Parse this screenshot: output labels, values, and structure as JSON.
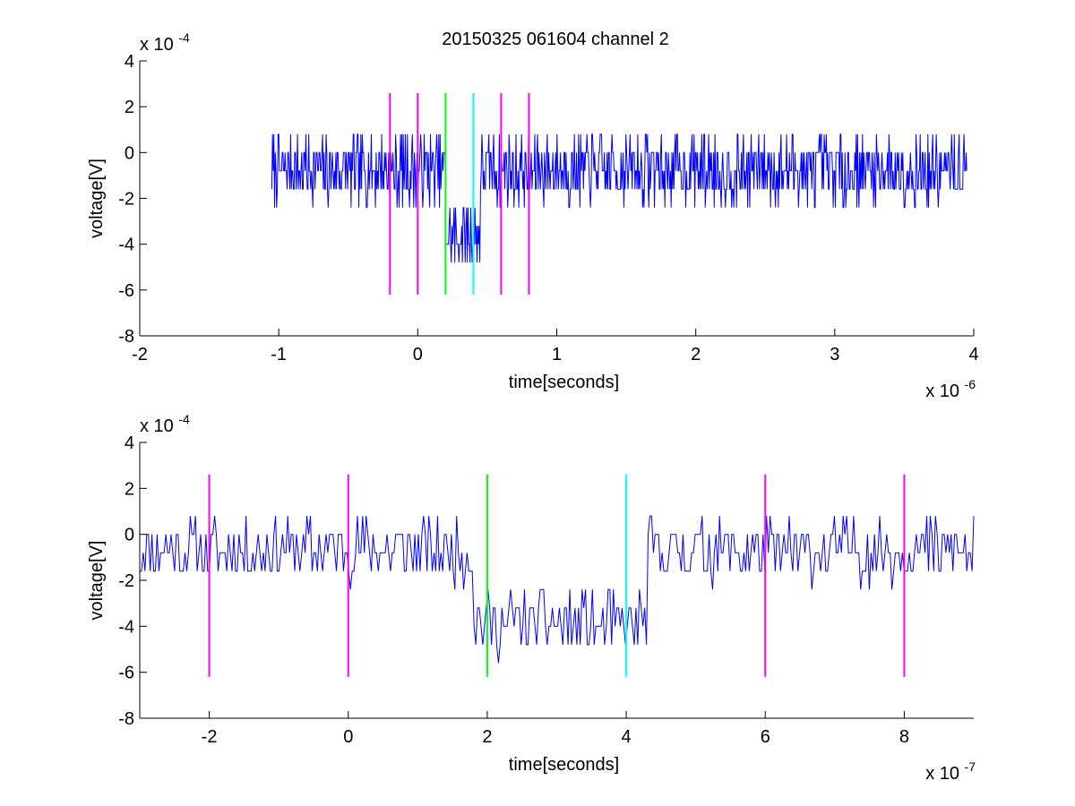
{
  "figure": {
    "title": "20150325 061604 channel 2"
  },
  "chart_data": [
    {
      "type": "line",
      "title": "20150325 061604 channel 2",
      "xlabel": "time[seconds]",
      "ylabel": "voltage[V]",
      "x_multiplier_label": "x 10",
      "x_multiplier_exp": "-6",
      "y_multiplier_label": "x 10",
      "y_multiplier_exp": "-4",
      "xlim": [
        -2,
        4
      ],
      "ylim": [
        -8,
        4
      ],
      "xticks": [
        "-2",
        "-1",
        "0",
        "1",
        "2",
        "3",
        "4"
      ],
      "yticks": [
        "-8",
        "-6",
        "-4",
        "-2",
        "0",
        "2",
        "4"
      ],
      "grid": false,
      "series": [
        {
          "color": "#0000ff",
          "x_range": [
            -1.05,
            3.95
          ],
          "baseline": -0.75,
          "dip": {
            "start": 0.2,
            "end": 0.45,
            "level": -3.6
          },
          "noise": 0.9,
          "quant": 0.8,
          "n": 1000,
          "seed": 7
        }
      ],
      "markers": [
        {
          "x": -0.2,
          "color": "#ff00ff",
          "y_range": [
            -6.2,
            2.6
          ]
        },
        {
          "x": 0.0,
          "color": "#ff00ff",
          "y_range": [
            -6.2,
            2.6
          ]
        },
        {
          "x": 0.2,
          "color": "#00ff00",
          "y_range": [
            -6.2,
            2.6
          ]
        },
        {
          "x": 0.4,
          "color": "#00ffff",
          "y_range": [
            -6.2,
            2.6
          ]
        },
        {
          "x": 0.6,
          "color": "#ff00ff",
          "y_range": [
            -6.2,
            2.6
          ]
        },
        {
          "x": 0.8,
          "color": "#ff00ff",
          "y_range": [
            -6.2,
            2.6
          ]
        }
      ]
    },
    {
      "type": "line",
      "xlabel": "time[seconds]",
      "ylabel": "voltage[V]",
      "x_multiplier_label": "x 10",
      "x_multiplier_exp": "-7",
      "y_multiplier_label": "x 10",
      "y_multiplier_exp": "-4",
      "xlim": [
        -3,
        9
      ],
      "ylim": [
        -8,
        4
      ],
      "xticks": [
        "-2",
        "0",
        "2",
        "4",
        "6",
        "8"
      ],
      "xtick_values": [
        -2,
        0,
        2,
        4,
        6,
        8
      ],
      "yticks": [
        "-8",
        "-6",
        "-4",
        "-2",
        "0",
        "2",
        "4"
      ],
      "grid": false,
      "series": [
        {
          "color": "#0000ff",
          "x_range": [
            -3,
            9
          ],
          "baseline": -0.7,
          "dip": {
            "start": 1.8,
            "end": 4.3,
            "level": -3.9
          },
          "noise": 0.85,
          "quant": 0.8,
          "n": 480,
          "seed": 11
        }
      ],
      "markers": [
        {
          "x": -2,
          "color": "#ff00ff",
          "y_range": [
            -6.2,
            2.6
          ]
        },
        {
          "x": 0,
          "color": "#ff00ff",
          "y_range": [
            -6.2,
            2.6
          ]
        },
        {
          "x": 2,
          "color": "#00ff00",
          "y_range": [
            -6.2,
            2.6
          ]
        },
        {
          "x": 4,
          "color": "#00ffff",
          "y_range": [
            -6.2,
            2.6
          ]
        },
        {
          "x": 6,
          "color": "#ff00ff",
          "y_range": [
            -6.2,
            2.6
          ]
        },
        {
          "x": 8,
          "color": "#ff00ff",
          "y_range": [
            -6.2,
            2.6
          ]
        }
      ]
    }
  ]
}
